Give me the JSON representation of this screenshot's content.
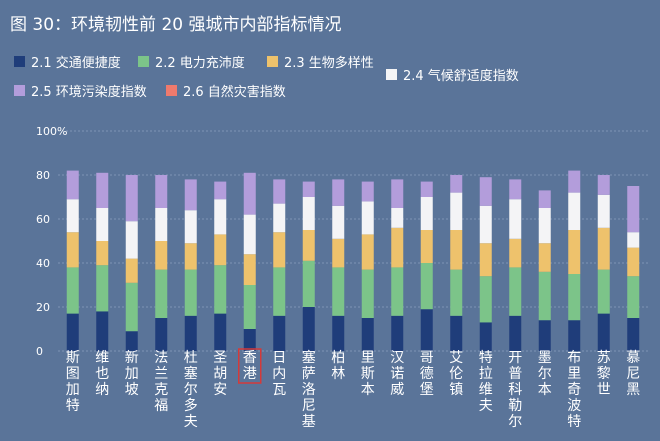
{
  "title": "图 30：环境韧性前 20 强城市内部指标情况",
  "highlighted_city": "香港",
  "chart_data": {
    "type": "bar",
    "stacked": true,
    "title": "图 30：环境韧性前 20 强城市内部指标情况",
    "ylim": [
      0,
      100
    ],
    "y_ticks": [
      0,
      20,
      40,
      60,
      80,
      100
    ],
    "y_tick_labels": [
      "0",
      "20",
      "40",
      "60",
      "80",
      "100%"
    ],
    "categories": [
      "斯图加特",
      "维也纳",
      "新加坡",
      "法兰克福",
      "杜塞尔多夫",
      "圣胡安",
      "香港",
      "日内瓦",
      "塞萨洛尼基",
      "柏林",
      "里斯本",
      "汉诺威",
      "哥德堡",
      "艾伦镇",
      "特拉维夫",
      "开普科勒尔",
      "墨尔本",
      "布里奇波特",
      "苏黎世",
      "慕尼黑"
    ],
    "series": [
      {
        "name": "2.1 交通便捷度",
        "color": "#1f3d7a",
        "values": [
          17,
          18,
          9,
          15,
          16,
          17,
          10,
          16,
          20,
          16,
          15,
          16,
          19,
          16,
          13,
          16,
          14,
          14,
          17,
          15
        ]
      },
      {
        "name": "2.2 电力充沛度",
        "color": "#7cc489",
        "values": [
          21,
          21,
          22,
          22,
          21,
          22,
          20,
          22,
          21,
          22,
          22,
          22,
          21,
          21,
          21,
          22,
          22,
          21,
          20,
          19
        ]
      },
      {
        "name": "2.3 生物多样性",
        "color": "#eec26c",
        "values": [
          16,
          11,
          11,
          13,
          12,
          14,
          14,
          16,
          14,
          13,
          16,
          18,
          15,
          18,
          15,
          13,
          13,
          20,
          19,
          13
        ]
      },
      {
        "name": "2.4 气候舒适度指数",
        "color": "#f4f4f6",
        "values": [
          15,
          15,
          17,
          15,
          15,
          16,
          18,
          13,
          15,
          15,
          15,
          9,
          15,
          17,
          17,
          18,
          16,
          17,
          15,
          7
        ]
      },
      {
        "name": "2.5 环境污染度指数",
        "color": "#b39ddb",
        "values": [
          13,
          16,
          21,
          15,
          14,
          8,
          19,
          11,
          7,
          12,
          9,
          13,
          7,
          8,
          13,
          9,
          8,
          10,
          9,
          21
        ]
      },
      {
        "name": "2.6 自然灾害指数",
        "color": "#ef7a6d",
        "values": [
          0,
          0,
          0,
          0,
          0,
          0,
          0,
          0,
          0,
          0,
          0,
          0,
          0,
          0,
          0,
          0,
          0,
          0,
          0,
          0
        ]
      }
    ]
  }
}
